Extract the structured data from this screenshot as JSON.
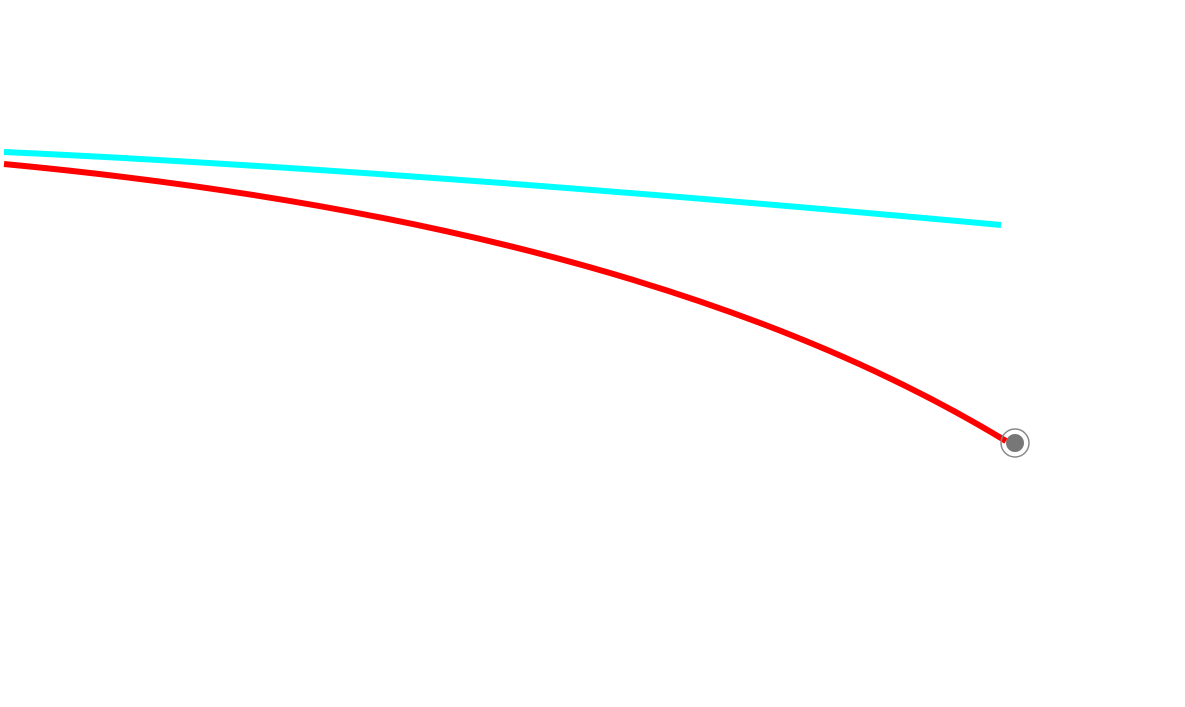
{
  "colors": {
    "background": "#ffffff",
    "cyan_path": "#00ffff",
    "red_path": "#ff0000",
    "marker_fill": "#777777",
    "marker_ring": "#888888"
  },
  "paths": [
    {
      "name": "cyan-path",
      "color": "#00ffff"
    },
    {
      "name": "red-path",
      "color": "#ff0000"
    }
  ],
  "marker": {
    "icon": "location-marker-icon"
  }
}
